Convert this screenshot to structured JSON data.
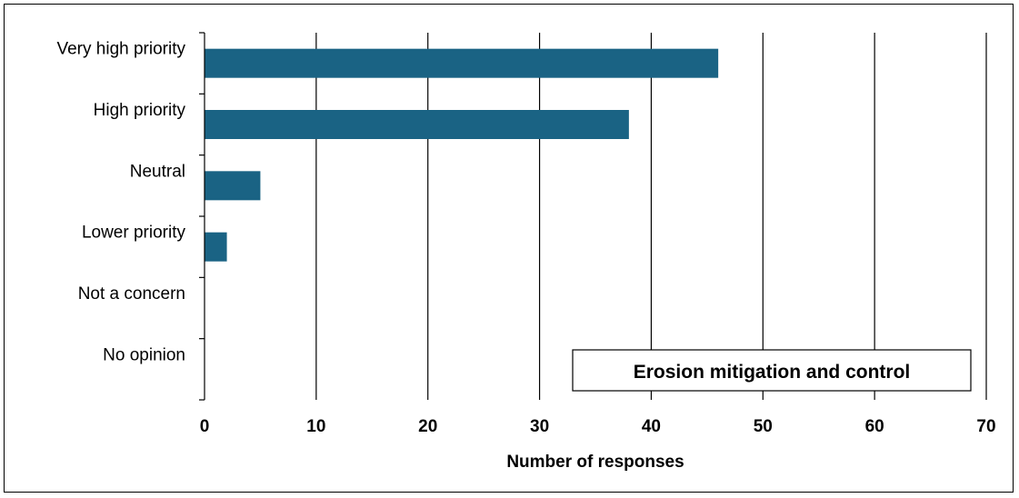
{
  "chart_data": {
    "type": "bar",
    "orientation": "horizontal",
    "title": "Erosion mitigation and control",
    "xlabel": "Number of responses",
    "ylabel": "",
    "categories": [
      "Very high priority",
      "High priority",
      "Neutral",
      "Lower priority",
      "Not a concern",
      "No opinion"
    ],
    "values": [
      46,
      38,
      5,
      2,
      0,
      0
    ],
    "xlim": [
      0,
      70
    ],
    "xticks": [
      "0",
      "10",
      "20",
      "30",
      "40",
      "50",
      "60",
      "70"
    ],
    "grid": "vertical",
    "bar_color": "#1a6384",
    "title_placement": "bottom-right"
  }
}
